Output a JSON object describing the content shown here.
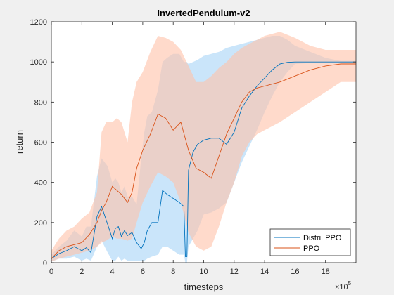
{
  "chart_data": {
    "type": "line",
    "title": "InvertedPendulum-v2",
    "xlabel": "timesteps",
    "ylabel": "return",
    "x_exponent_label": "×10",
    "x_exponent_power": "5",
    "xlim": [
      0,
      20
    ],
    "ylim": [
      0,
      1200
    ],
    "xticks": [
      0,
      2,
      4,
      6,
      8,
      10,
      12,
      14,
      16,
      18
    ],
    "yticks": [
      0,
      200,
      400,
      600,
      800,
      1000,
      1200
    ],
    "grid": false,
    "legend_position": "bottom-right",
    "series": [
      {
        "name": "Distri. PPO",
        "color": "#0072bd",
        "band_color": "#a6d4f7",
        "x": [
          0,
          0.5,
          1,
          1.5,
          2,
          2.3,
          2.6,
          3,
          3.3,
          3.7,
          4.0,
          4.2,
          4.4,
          4.6,
          4.8,
          5.0,
          5.3,
          5.6,
          5.9,
          6.1,
          6.3,
          6.6,
          7.0,
          7.3,
          7.6,
          8.0,
          8.4,
          8.7,
          8.8,
          8.9,
          9.0,
          9.3,
          9.6,
          10,
          10.5,
          11,
          11.5,
          12,
          12.5,
          13,
          13.5,
          14,
          14.5,
          15,
          15.5,
          16,
          17,
          18,
          19,
          20
        ],
        "mean": [
          20,
          45,
          60,
          80,
          60,
          75,
          50,
          230,
          280,
          190,
          120,
          170,
          180,
          130,
          160,
          135,
          150,
          100,
          70,
          100,
          160,
          200,
          200,
          360,
          340,
          320,
          300,
          280,
          30,
          30,
          460,
          550,
          590,
          610,
          620,
          620,
          590,
          650,
          770,
          830,
          880,
          920,
          960,
          990,
          998,
          1000,
          1000,
          1000,
          1000,
          1000
        ],
        "upper": [
          40,
          80,
          110,
          160,
          130,
          180,
          180,
          430,
          520,
          480,
          400,
          420,
          400,
          350,
          380,
          330,
          330,
          290,
          520,
          650,
          730,
          750,
          860,
          1000,
          1020,
          1040,
          1040,
          1000,
          1000,
          1000,
          990,
          1000,
          1010,
          1030,
          1040,
          1050,
          1070,
          1080,
          1090,
          1100,
          1110,
          1120,
          1130,
          1130,
          1110,
          1080,
          1050,
          1020,
          1005,
          1005
        ],
        "lower": [
          5,
          20,
          20,
          30,
          10,
          20,
          10,
          80,
          110,
          50,
          10,
          10,
          30,
          10,
          20,
          10,
          10,
          10,
          10,
          10,
          20,
          30,
          40,
          80,
          80,
          60,
          40,
          40,
          0,
          0,
          80,
          120,
          160,
          240,
          250,
          270,
          300,
          400,
          500,
          580,
          660,
          750,
          830,
          900,
          950,
          990,
          995,
          995,
          995,
          995
        ]
      },
      {
        "name": "PPO",
        "color": "#d95319",
        "band_color": "#ffc1a8",
        "x": [
          0,
          0.5,
          1,
          1.5,
          2,
          2.5,
          3,
          3.3,
          3.6,
          4.0,
          4.3,
          4.6,
          5.0,
          5.3,
          5.6,
          6.0,
          6.5,
          7.0,
          7.5,
          8.0,
          8.5,
          9.0,
          9.5,
          10,
          10.5,
          11,
          11.5,
          12,
          12.5,
          13,
          13.5,
          14,
          15,
          16,
          17,
          18,
          19,
          20
        ],
        "mean": [
          20,
          60,
          80,
          90,
          100,
          140,
          200,
          260,
          300,
          380,
          360,
          340,
          300,
          350,
          470,
          560,
          640,
          740,
          720,
          660,
          700,
          560,
          470,
          450,
          420,
          530,
          640,
          720,
          800,
          850,
          870,
          880,
          900,
          930,
          960,
          980,
          990,
          990
        ],
        "upper": [
          60,
          120,
          160,
          180,
          220,
          250,
          350,
          650,
          700,
          700,
          720,
          700,
          600,
          800,
          900,
          950,
          1050,
          1130,
          1120,
          1100,
          1060,
          980,
          900,
          900,
          930,
          970,
          1000,
          1040,
          1070,
          1090,
          1110,
          1130,
          1150,
          1120,
          1080,
          1060,
          1060,
          1060
        ],
        "lower": [
          5,
          20,
          30,
          40,
          50,
          60,
          80,
          100,
          110,
          130,
          120,
          120,
          110,
          120,
          200,
          300,
          380,
          450,
          430,
          400,
          300,
          150,
          80,
          60,
          80,
          180,
          300,
          400,
          530,
          600,
          640,
          660,
          700,
          750,
          800,
          850,
          900,
          900
        ]
      }
    ]
  }
}
